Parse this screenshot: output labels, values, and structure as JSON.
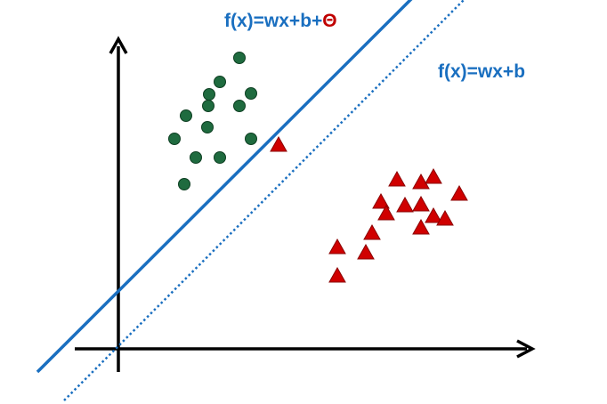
{
  "labels": {
    "shifted_line": {
      "prefix": "f(x)=wx+b+",
      "theta": "Θ"
    },
    "base_line": "f(x)=wx+b"
  },
  "colors": {
    "line": "#1a6fc0",
    "label": "#1a6fc0",
    "theta": "#c00000",
    "axis": "#000000",
    "circle_fill": "#1f6b3f",
    "circle_stroke": "#0e3f22",
    "triangle_fill": "#d00000",
    "triangle_stroke": "#8a0000"
  },
  "icons": {
    "circle": "green-circle-marker",
    "triangle": "red-triangle-marker"
  }
}
